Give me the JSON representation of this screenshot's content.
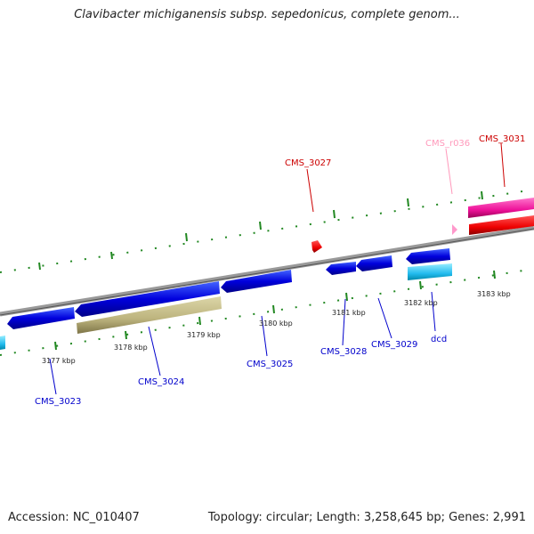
{
  "title": "Clavibacter michiganensis subsp. sepedonicus, complete genom...",
  "accession": "Accession: NC_010407",
  "summary": "Topology: circular; Length: 3,258,645 bp; Genes: 2,991",
  "scale_labels": [
    "3177 kbp",
    "3178 kbp",
    "3179 kbp",
    "3180 kbp",
    "3181 kbp",
    "3182 kbp",
    "3183 kbp"
  ],
  "genes": {
    "cms_3023": "CMS_3023",
    "cms_3024": "CMS_3024",
    "cms_3025": "CMS_3025",
    "cms_3027": "CMS_3027",
    "cms_3028": "CMS_3028",
    "cms_3029": "CMS_3029",
    "dcd": "dcd",
    "cms_r036": "CMS_r036",
    "cms_3031": "CMS_3031"
  },
  "colors": {
    "cds_forward": "#0000dd",
    "cds_reverse": "#1122ee",
    "gene_olive": "#c8c090",
    "gene_cyan": "#33ccee",
    "rna_pink": "#ff99cc",
    "gene_magenta": "#ee2299",
    "gene_red": "#ee0000",
    "backbone": "#888888",
    "ticks": "#228822"
  },
  "icons": [
    "forward-strand-arrow",
    "reverse-strand-arrow"
  ]
}
